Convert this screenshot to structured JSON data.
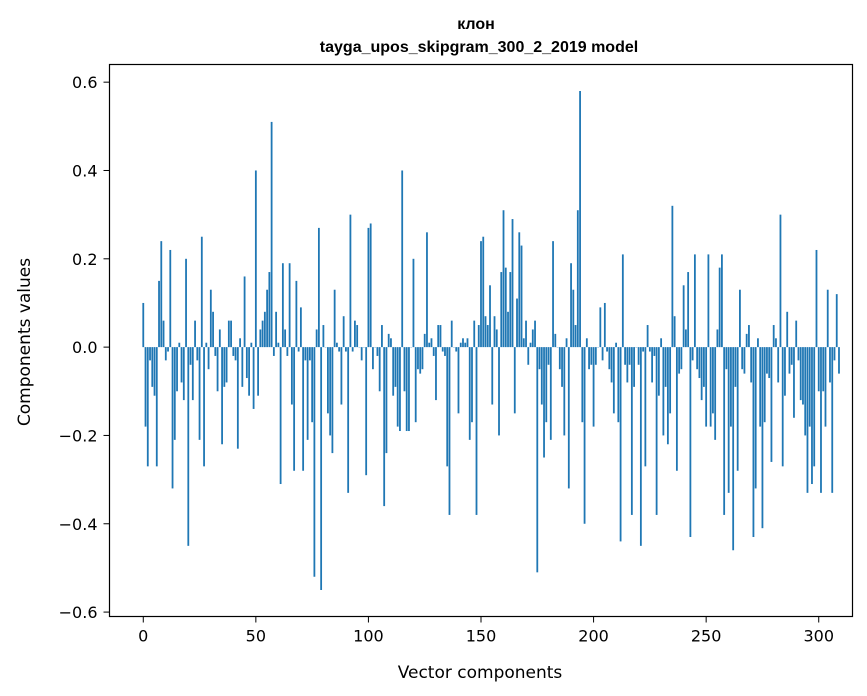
{
  "chart_data": {
    "type": "bar",
    "title_line1": "клон",
    "title_line2": "tayga_upos_skipgram_300_2_2019 model",
    "xlabel": "Vector components",
    "ylabel": "Components values",
    "xlim": [
      -15,
      315
    ],
    "ylim": [
      -0.61,
      0.64
    ],
    "x_ticks": [
      0,
      50,
      100,
      150,
      200,
      250,
      300
    ],
    "y_ticks": [
      -0.6,
      -0.4,
      -0.2,
      0.0,
      0.2,
      0.4,
      0.6
    ],
    "x_tick_labels": [
      "0",
      "50",
      "100",
      "150",
      "200",
      "250",
      "300"
    ],
    "y_tick_labels": [
      "−0.6",
      "−0.4",
      "−0.2",
      "0.0",
      "0.2",
      "0.4",
      "0.6"
    ],
    "bar_color": "#1f77b4",
    "values": [
      0.1,
      -0.18,
      -0.27,
      -0.03,
      -0.09,
      -0.11,
      -0.27,
      0.15,
      0.24,
      0.06,
      -0.03,
      -0.01,
      0.22,
      -0.32,
      -0.21,
      -0.1,
      0.01,
      -0.08,
      -0.12,
      0.2,
      -0.45,
      -0.04,
      -0.12,
      0.06,
      -0.03,
      -0.21,
      0.25,
      -0.27,
      0.01,
      -0.05,
      0.13,
      0.08,
      -0.02,
      -0.1,
      0.04,
      -0.22,
      -0.09,
      -0.08,
      0.06,
      0.06,
      -0.02,
      -0.03,
      -0.23,
      0.02,
      -0.09,
      0.16,
      -0.07,
      -0.11,
      0.01,
      -0.14,
      0.4,
      -0.11,
      0.04,
      0.06,
      0.08,
      0.13,
      0.17,
      0.51,
      -0.02,
      0.08,
      0.01,
      -0.31,
      0.19,
      0.04,
      -0.02,
      0.19,
      -0.13,
      -0.28,
      0.15,
      -0.01,
      0.09,
      -0.28,
      -0.03,
      -0.21,
      -0.03,
      -0.17,
      -0.52,
      0.04,
      0.27,
      -0.55,
      0.05,
      0.0,
      -0.15,
      -0.2,
      -0.24,
      0.13,
      0.01,
      -0.01,
      -0.13,
      0.07,
      -0.01,
      -0.33,
      0.3,
      -0.01,
      0.06,
      0.05,
      0.0,
      -0.03,
      0.0,
      -0.29,
      0.27,
      0.28,
      -0.05,
      0.0,
      -0.02,
      -0.1,
      0.05,
      -0.36,
      -0.24,
      0.03,
      0.02,
      -0.11,
      -0.09,
      -0.18,
      -0.19,
      0.4,
      -0.1,
      -0.19,
      -0.19,
      0.0,
      0.2,
      -0.17,
      -0.05,
      -0.06,
      -0.05,
      0.03,
      0.26,
      0.01,
      0.02,
      -0.02,
      -0.12,
      0.05,
      0.05,
      -0.01,
      -0.02,
      -0.27,
      -0.38,
      0.06,
      0.0,
      -0.01,
      -0.15,
      0.01,
      0.02,
      0.01,
      0.02,
      -0.21,
      -0.17,
      0.06,
      -0.38,
      0.05,
      0.24,
      0.25,
      0.07,
      0.05,
      0.14,
      -0.13,
      0.07,
      0.04,
      -0.2,
      0.17,
      0.31,
      0.18,
      0.08,
      0.17,
      0.29,
      -0.15,
      0.11,
      0.26,
      0.23,
      0.02,
      0.06,
      -0.04,
      0.01,
      0.04,
      0.06,
      -0.51,
      -0.05,
      -0.13,
      -0.25,
      -0.17,
      -0.04,
      -0.21,
      0.24,
      0.03,
      0.0,
      -0.05,
      -0.09,
      -0.2,
      0.02,
      -0.32,
      0.19,
      0.13,
      0.05,
      0.31,
      0.58,
      -0.17,
      -0.4,
      0.02,
      -0.05,
      -0.04,
      -0.18,
      -0.04,
      0.0,
      0.09,
      -0.03,
      0.1,
      -0.01,
      -0.05,
      -0.08,
      -0.15,
      0.01,
      -0.17,
      -0.44,
      0.21,
      -0.04,
      -0.08,
      -0.04,
      -0.38,
      -0.09,
      0.0,
      -0.04,
      -0.45,
      -0.01,
      -0.27,
      0.05,
      -0.01,
      -0.08,
      -0.02,
      -0.38,
      -0.11,
      0.02,
      -0.2,
      -0.09,
      -0.22,
      -0.15,
      0.32,
      0.07,
      -0.28,
      -0.06,
      -0.05,
      0.14,
      0.04,
      0.17,
      -0.43,
      -0.03,
      0.21,
      -0.05,
      -0.07,
      -0.12,
      -0.09,
      -0.18,
      0.21,
      -0.18,
      -0.15,
      -0.21,
      0.04,
      0.18,
      0.21,
      -0.38,
      -0.05,
      -0.33,
      -0.18,
      -0.46,
      -0.09,
      -0.28,
      0.13,
      -0.05,
      -0.06,
      0.03,
      0.05,
      -0.08,
      -0.43,
      -0.32,
      0.02,
      -0.18,
      -0.41,
      -0.17,
      -0.06,
      -0.07,
      -0.26,
      0.05,
      0.02,
      -0.08,
      0.3,
      -0.27,
      -0.11,
      0.08,
      -0.06,
      -0.04,
      -0.16,
      0.06,
      -0.03,
      -0.12,
      -0.13,
      -0.2,
      -0.33,
      -0.18,
      -0.31,
      -0.27,
      0.22,
      -0.1,
      -0.33,
      -0.1,
      -0.18,
      0.13,
      -0.08,
      -0.33,
      -0.03,
      0.12,
      -0.06
    ]
  }
}
